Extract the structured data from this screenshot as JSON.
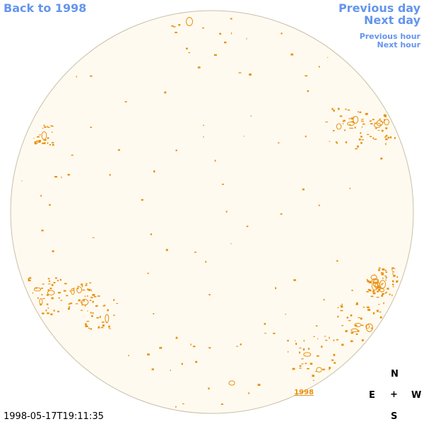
{
  "nav": {
    "back_label": "Back to 1998",
    "prev_day_label": "Previous day",
    "next_day_label": "Next day",
    "prev_hour_label": "Previous hour",
    "next_hour_label": "Next hour"
  },
  "disk": {
    "fill_color": "#fffaf0",
    "edge_color": "#c8bfa8",
    "contour_color": "#e8900c",
    "year_label": "1998"
  },
  "compass": {
    "north": "N",
    "south": "S",
    "east": "E",
    "west": "W",
    "center": "+"
  },
  "timestamp": "1998-05-17T19:11:35"
}
